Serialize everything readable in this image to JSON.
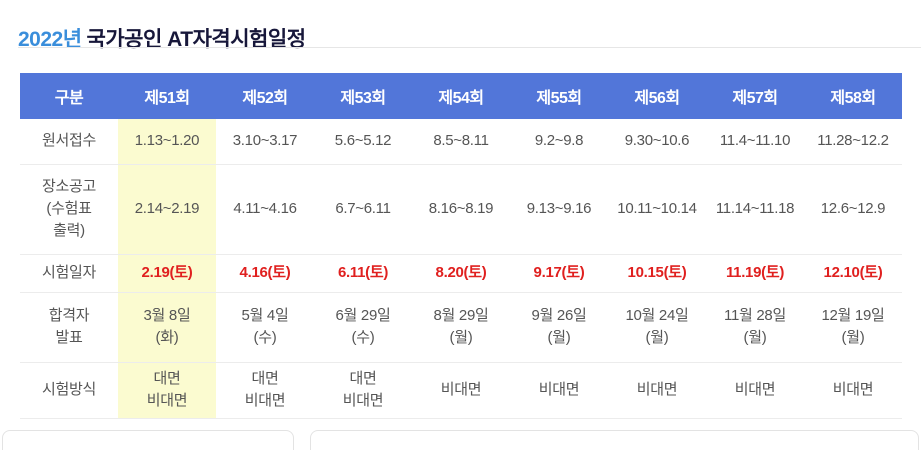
{
  "title": {
    "year": "2022년",
    "rest": "국가공인 AT자격시험일정"
  },
  "colors": {
    "header_bg": "#5276d9",
    "highlight_column_bg": "#fbfbd0",
    "exam_date_red": "#e0201f",
    "title_year_blue": "#3a8edb",
    "title_text": "#17173a",
    "body_text": "#555555"
  },
  "table": {
    "columns": [
      "구분",
      "제51회",
      "제52회",
      "제53회",
      "제54회",
      "제55회",
      "제56회",
      "제57회",
      "제58회"
    ],
    "rows": [
      {
        "label": "원서접수",
        "style": "normal",
        "cells": [
          "1.13~1.20",
          "3.10~3.17",
          "5.6~5.12",
          "8.5~8.11",
          "9.2~9.8",
          "9.30~10.6",
          "11.4~11.10",
          "11.28~12.2"
        ]
      },
      {
        "label": "장소공고\n(수험표\n출력)",
        "style": "normal",
        "cells": [
          "2.14~2.19",
          "4.11~4.16",
          "6.7~6.11",
          "8.16~8.19",
          "9.13~9.16",
          "10.11~10.14",
          "11.14~11.18",
          "12.6~12.9"
        ]
      },
      {
        "label": "시험일자",
        "style": "red",
        "cells": [
          "2.19(토)",
          "4.16(토)",
          "6.11(토)",
          "8.20(토)",
          "9.17(토)",
          "10.15(토)",
          "11.19(토)",
          "12.10(토)"
        ]
      },
      {
        "label": "합격자\n발표",
        "style": "normal",
        "cells": [
          "3월 8일\n(화)",
          "5월 4일\n(수)",
          "6월 29일\n(수)",
          "8월 29일\n(월)",
          "9월 26일\n(월)",
          "10월 24일\n(월)",
          "11월 28일\n(월)",
          "12월 19일\n(월)"
        ]
      },
      {
        "label": "시험방식",
        "style": "normal",
        "cells": [
          "대면\n비대면",
          "대면\n비대면",
          "대면\n비대면",
          "비대면",
          "비대면",
          "비대면",
          "비대면",
          "비대면"
        ]
      }
    ]
  }
}
